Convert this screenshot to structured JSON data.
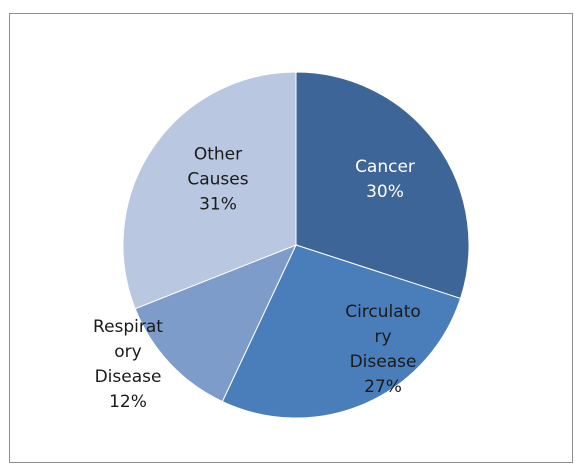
{
  "chart_data": {
    "type": "pie",
    "categories": [
      "Cancer",
      "Circulatory Disease",
      "Respiratory Disease",
      "Other Causes"
    ],
    "values": [
      30,
      27,
      12,
      31
    ],
    "value_labels": [
      "30%",
      "27%",
      "12%",
      "31%"
    ],
    "colors": [
      "#3e6597",
      "#4a7ebb",
      "#7e9cc9",
      "#b9c7e0"
    ]
  }
}
